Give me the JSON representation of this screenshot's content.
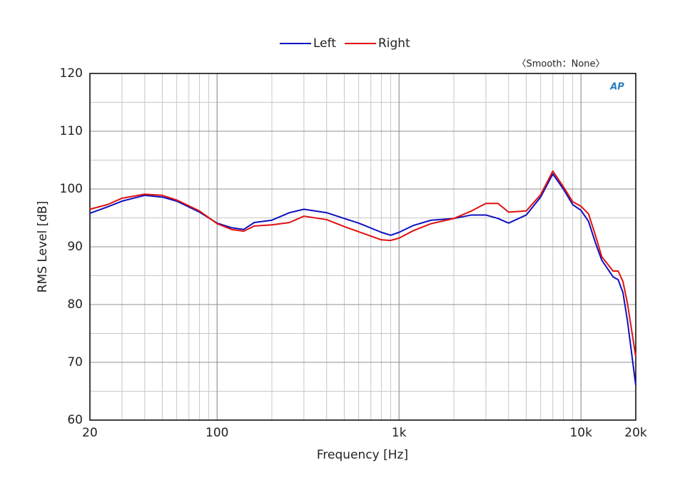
{
  "chart_data": {
    "type": "line",
    "annotation": "〈Smooth：None〉",
    "logo": "AP",
    "xlabel": "Frequency [Hz]",
    "ylabel": "RMS Level [dB]",
    "xscale": "log",
    "grid": true,
    "legend": "top",
    "xlim": [
      20,
      20000
    ],
    "ylim": [
      60,
      120
    ],
    "xticks": [
      20,
      100,
      {
        "value": 1000,
        "label": "1k"
      },
      {
        "value": 10000,
        "label": "10k"
      },
      {
        "value": 20000,
        "label": "20k"
      }
    ],
    "yticks": [
      60,
      70,
      80,
      90,
      100,
      110,
      120
    ],
    "x": [
      20,
      25,
      30,
      40,
      50,
      60,
      80,
      100,
      120,
      140,
      160,
      200,
      250,
      300,
      400,
      500,
      600,
      800,
      900,
      1000,
      1200,
      1500,
      2000,
      2500,
      3000,
      3500,
      4000,
      5000,
      6000,
      7000,
      8000,
      9000,
      10000,
      11000,
      12000,
      13000,
      15000,
      16000,
      17000,
      18000,
      20000
    ],
    "series": [
      {
        "name": "Left",
        "color": "#1010c0",
        "values": [
          95.8,
          96.9,
          97.9,
          98.9,
          98.6,
          97.9,
          96.0,
          94.1,
          93.3,
          93.0,
          94.2,
          94.6,
          95.9,
          96.5,
          95.9,
          94.9,
          94.1,
          92.5,
          92.0,
          92.5,
          93.7,
          94.6,
          94.9,
          95.5,
          95.5,
          94.9,
          94.1,
          95.5,
          98.6,
          102.6,
          100.0,
          97.3,
          96.3,
          94.4,
          90.7,
          87.7,
          84.8,
          84.3,
          82.1,
          77.2,
          66.0
        ]
      },
      {
        "name": "Right",
        "color": "#e01010",
        "values": [
          96.5,
          97.3,
          98.4,
          99.1,
          98.9,
          98.1,
          96.2,
          94.0,
          93.0,
          92.7,
          93.6,
          93.8,
          94.2,
          95.3,
          94.7,
          93.5,
          92.6,
          91.2,
          91.1,
          91.5,
          92.8,
          94.0,
          94.9,
          96.2,
          97.5,
          97.5,
          96.0,
          96.2,
          99.0,
          103.1,
          100.4,
          97.8,
          97.0,
          95.7,
          92.0,
          88.3,
          85.8,
          85.8,
          84.0,
          80.2,
          71.0
        ]
      }
    ]
  }
}
